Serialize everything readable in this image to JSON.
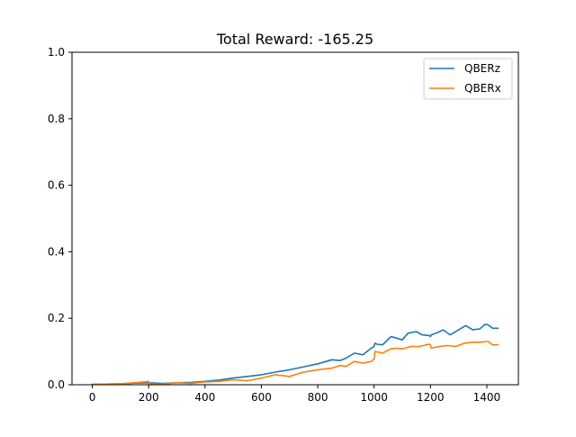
{
  "chart_data": {
    "type": "line",
    "title": "Total Reward: -165.25",
    "xlabel": "",
    "ylabel": "",
    "xlim": [
      -72,
      1512
    ],
    "ylim": [
      0.0,
      1.0
    ],
    "x_ticks": [
      0,
      200,
      400,
      600,
      800,
      1000,
      1200,
      1400
    ],
    "x_tick_labels": [
      "0",
      "200",
      "400",
      "600",
      "800",
      "1000",
      "1200",
      "1400"
    ],
    "y_ticks": [
      0.0,
      0.2,
      0.4,
      0.6,
      0.8,
      1.0
    ],
    "y_tick_labels": [
      "0.0",
      "0.2",
      "0.4",
      "0.6",
      "0.8",
      "1.0"
    ],
    "grid": false,
    "legend_position": "top-right",
    "series": [
      {
        "name": "QBERz",
        "color": "#1f77b4",
        "x": [
          0,
          50,
          100,
          150,
          200,
          250,
          300,
          350,
          400,
          450,
          500,
          550,
          600,
          650,
          700,
          750,
          800,
          850,
          880,
          900,
          930,
          960,
          990,
          1000,
          1003,
          1010,
          1030,
          1060,
          1080,
          1100,
          1120,
          1150,
          1170,
          1195,
          1200,
          1203,
          1220,
          1245,
          1270,
          1300,
          1325,
          1350,
          1375,
          1395,
          1405,
          1420,
          1440
        ],
        "values": [
          0.001,
          0.002,
          0.003,
          0.005,
          0.006,
          0.004,
          0.006,
          0.007,
          0.01,
          0.014,
          0.02,
          0.025,
          0.03,
          0.038,
          0.045,
          0.054,
          0.063,
          0.075,
          0.073,
          0.08,
          0.095,
          0.09,
          0.11,
          0.115,
          0.125,
          0.122,
          0.12,
          0.145,
          0.14,
          0.135,
          0.155,
          0.16,
          0.15,
          0.148,
          0.145,
          0.15,
          0.155,
          0.165,
          0.15,
          0.165,
          0.178,
          0.165,
          0.168,
          0.182,
          0.18,
          0.17,
          0.17
        ]
      },
      {
        "name": "QBERx",
        "color": "#ff7f0e",
        "x": [
          0,
          50,
          100,
          150,
          190,
          200,
          203,
          250,
          300,
          350,
          400,
          450,
          500,
          550,
          600,
          650,
          700,
          750,
          800,
          850,
          880,
          900,
          930,
          960,
          990,
          1000,
          1003,
          1030,
          1060,
          1080,
          1100,
          1130,
          1160,
          1195,
          1200,
          1203,
          1230,
          1260,
          1290,
          1320,
          1350,
          1380,
          1400,
          1405,
          1420,
          1440
        ],
        "values": [
          0.001,
          0.002,
          0.003,
          0.006,
          0.009,
          0.01,
          0.002,
          0.002,
          0.006,
          0.004,
          0.008,
          0.01,
          0.015,
          0.012,
          0.02,
          0.03,
          0.025,
          0.038,
          0.045,
          0.05,
          0.058,
          0.055,
          0.07,
          0.065,
          0.07,
          0.078,
          0.1,
          0.095,
          0.108,
          0.11,
          0.108,
          0.115,
          0.115,
          0.122,
          0.12,
          0.11,
          0.115,
          0.118,
          0.115,
          0.125,
          0.128,
          0.128,
          0.13,
          0.13,
          0.12,
          0.12
        ]
      }
    ]
  }
}
